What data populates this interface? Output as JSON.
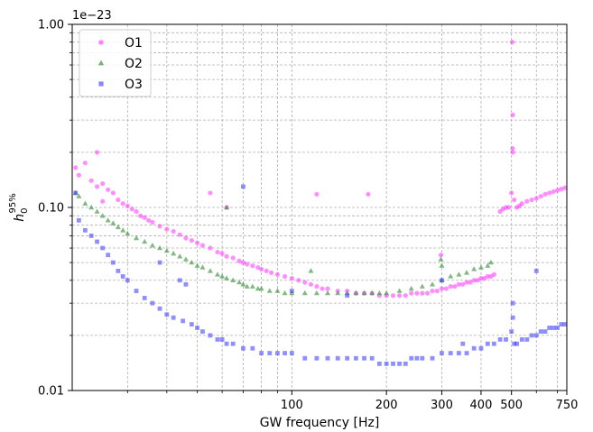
{
  "chart_data": {
    "type": "scatter",
    "title": "",
    "xlabel": "GW frequency [Hz]",
    "ylabel": "h₀⁹⁵%",
    "ylabel_main": "h",
    "ylabel_sub": "0",
    "ylabel_sup": "95%",
    "offset_text": "1e−23",
    "x_scale": "log",
    "y_scale": "log",
    "xlim": [
      20,
      750
    ],
    "ylim": [
      0.01,
      1.0
    ],
    "grid": true,
    "legend_position": "top-left",
    "x_ticks": [
      {
        "value": 100,
        "label": "100"
      },
      {
        "value": 200,
        "label": "200"
      },
      {
        "value": 300,
        "label": "300"
      },
      {
        "value": 400,
        "label": "400"
      },
      {
        "value": 500,
        "label": "500"
      },
      {
        "value": 750,
        "label": "750"
      }
    ],
    "y_ticks": [
      {
        "value": 0.01,
        "label": "0.01"
      },
      {
        "value": 0.1,
        "label": "0.10"
      },
      {
        "value": 1.0,
        "label": "1.00"
      }
    ],
    "series": [
      {
        "name": "O1",
        "color": "#ff33ff",
        "marker": "circle",
        "points": [
          [
            20.5,
            0.165
          ],
          [
            21,
            0.15
          ],
          [
            22,
            0.175
          ],
          [
            23,
            0.14
          ],
          [
            24,
            0.13
          ],
          [
            25,
            0.135
          ],
          [
            26,
            0.125
          ],
          [
            27,
            0.12
          ],
          [
            28,
            0.11
          ],
          [
            29,
            0.105
          ],
          [
            30,
            0.102
          ],
          [
            31,
            0.098
          ],
          [
            32,
            0.095
          ],
          [
            33,
            0.09
          ],
          [
            34,
            0.088
          ],
          [
            35,
            0.085
          ],
          [
            36,
            0.083
          ],
          [
            38,
            0.079
          ],
          [
            40,
            0.076
          ],
          [
            42,
            0.074
          ],
          [
            44,
            0.071
          ],
          [
            46,
            0.068
          ],
          [
            48,
            0.066
          ],
          [
            50,
            0.064
          ],
          [
            52,
            0.062
          ],
          [
            55,
            0.06
          ],
          [
            58,
            0.057
          ],
          [
            60,
            0.056
          ],
          [
            62,
            0.054
          ],
          [
            65,
            0.053
          ],
          [
            68,
            0.051
          ],
          [
            70,
            0.05
          ],
          [
            72,
            0.049
          ],
          [
            75,
            0.048
          ],
          [
            78,
            0.047
          ],
          [
            80,
            0.046
          ],
          [
            83,
            0.045
          ],
          [
            86,
            0.044
          ],
          [
            90,
            0.043
          ],
          [
            95,
            0.042
          ],
          [
            100,
            0.041
          ],
          [
            105,
            0.04
          ],
          [
            110,
            0.039
          ],
          [
            115,
            0.038
          ],
          [
            120,
            0.037
          ],
          [
            125,
            0.036
          ],
          [
            130,
            0.036
          ],
          [
            140,
            0.035
          ],
          [
            150,
            0.035
          ],
          [
            160,
            0.034
          ],
          [
            170,
            0.034
          ],
          [
            180,
            0.034
          ],
          [
            190,
            0.033
          ],
          [
            200,
            0.033
          ],
          [
            210,
            0.033
          ],
          [
            220,
            0.033
          ],
          [
            230,
            0.033
          ],
          [
            240,
            0.034
          ],
          [
            250,
            0.034
          ],
          [
            260,
            0.034
          ],
          [
            270,
            0.034
          ],
          [
            280,
            0.035
          ],
          [
            290,
            0.035
          ],
          [
            300,
            0.036
          ],
          [
            310,
            0.036
          ],
          [
            320,
            0.037
          ],
          [
            330,
            0.037
          ],
          [
            340,
            0.038
          ],
          [
            350,
            0.038
          ],
          [
            360,
            0.039
          ],
          [
            370,
            0.039
          ],
          [
            380,
            0.04
          ],
          [
            390,
            0.04
          ],
          [
            400,
            0.041
          ],
          [
            410,
            0.041
          ],
          [
            420,
            0.042
          ],
          [
            430,
            0.042
          ],
          [
            440,
            0.043
          ],
          [
            460,
            0.095
          ],
          [
            470,
            0.098
          ],
          [
            480,
            0.1
          ],
          [
            490,
            0.1
          ],
          [
            500,
            0.12
          ],
          [
            505,
            0.2
          ],
          [
            510,
            0.11
          ],
          [
            520,
            0.1
          ],
          [
            530,
            0.102
          ],
          [
            540,
            0.105
          ],
          [
            560,
            0.108
          ],
          [
            580,
            0.11
          ],
          [
            600,
            0.112
          ],
          [
            620,
            0.115
          ],
          [
            640,
            0.118
          ],
          [
            660,
            0.12
          ],
          [
            680,
            0.122
          ],
          [
            700,
            0.124
          ],
          [
            720,
            0.126
          ],
          [
            740,
            0.128
          ],
          [
            24,
            0.2
          ],
          [
            55,
            0.12
          ],
          [
            62,
            0.1
          ],
          [
            120,
            0.118
          ],
          [
            175,
            0.118
          ],
          [
            25,
            0.108
          ],
          [
            298,
            0.055
          ],
          [
            503,
            0.8
          ],
          [
            505,
            0.32
          ],
          [
            504,
            0.21
          ]
        ]
      },
      {
        "name": "O2",
        "color": "#2e8b2e",
        "marker": "triangle",
        "points": [
          [
            20.5,
            0.12
          ],
          [
            21,
            0.115
          ],
          [
            22,
            0.105
          ],
          [
            23,
            0.1
          ],
          [
            24,
            0.095
          ],
          [
            25,
            0.09
          ],
          [
            26,
            0.085
          ],
          [
            27,
            0.082
          ],
          [
            28,
            0.078
          ],
          [
            29,
            0.075
          ],
          [
            30,
            0.072
          ],
          [
            32,
            0.068
          ],
          [
            34,
            0.065
          ],
          [
            36,
            0.062
          ],
          [
            38,
            0.06
          ],
          [
            40,
            0.058
          ],
          [
            42,
            0.056
          ],
          [
            44,
            0.054
          ],
          [
            46,
            0.052
          ],
          [
            48,
            0.05
          ],
          [
            50,
            0.048
          ],
          [
            52,
            0.047
          ],
          [
            55,
            0.045
          ],
          [
            58,
            0.043
          ],
          [
            60,
            0.042
          ],
          [
            62,
            0.041
          ],
          [
            65,
            0.04
          ],
          [
            68,
            0.039
          ],
          [
            70,
            0.038
          ],
          [
            72,
            0.037
          ],
          [
            75,
            0.037
          ],
          [
            78,
            0.036
          ],
          [
            80,
            0.036
          ],
          [
            85,
            0.035
          ],
          [
            90,
            0.035
          ],
          [
            95,
            0.034
          ],
          [
            100,
            0.034
          ],
          [
            110,
            0.034
          ],
          [
            120,
            0.034
          ],
          [
            130,
            0.034
          ],
          [
            140,
            0.034
          ],
          [
            150,
            0.034
          ],
          [
            160,
            0.034
          ],
          [
            170,
            0.034
          ],
          [
            180,
            0.034
          ],
          [
            190,
            0.034
          ],
          [
            200,
            0.034
          ],
          [
            220,
            0.035
          ],
          [
            240,
            0.036
          ],
          [
            260,
            0.037
          ],
          [
            280,
            0.038
          ],
          [
            300,
            0.04
          ],
          [
            320,
            0.042
          ],
          [
            340,
            0.043
          ],
          [
            360,
            0.044
          ],
          [
            380,
            0.046
          ],
          [
            400,
            0.047
          ],
          [
            420,
            0.048
          ],
          [
            430,
            0.05
          ],
          [
            62,
            0.1
          ],
          [
            115,
            0.045
          ],
          [
            298,
            0.052
          ],
          [
            300,
            0.048
          ]
        ]
      },
      {
        "name": "O3",
        "color": "#3333ff",
        "marker": "square",
        "points": [
          [
            20.5,
            0.12
          ],
          [
            21,
            0.085
          ],
          [
            22,
            0.075
          ],
          [
            23,
            0.07
          ],
          [
            24,
            0.065
          ],
          [
            25,
            0.06
          ],
          [
            26,
            0.055
          ],
          [
            27,
            0.05
          ],
          [
            28,
            0.045
          ],
          [
            29,
            0.042
          ],
          [
            30,
            0.04
          ],
          [
            32,
            0.035
          ],
          [
            34,
            0.032
          ],
          [
            36,
            0.03
          ],
          [
            38,
            0.028
          ],
          [
            40,
            0.026
          ],
          [
            42,
            0.025
          ],
          [
            45,
            0.024
          ],
          [
            48,
            0.023
          ],
          [
            50,
            0.022
          ],
          [
            52,
            0.021
          ],
          [
            55,
            0.02
          ],
          [
            58,
            0.019
          ],
          [
            60,
            0.019
          ],
          [
            62,
            0.018
          ],
          [
            65,
            0.018
          ],
          [
            70,
            0.017
          ],
          [
            75,
            0.017
          ],
          [
            80,
            0.016
          ],
          [
            85,
            0.016
          ],
          [
            90,
            0.016
          ],
          [
            95,
            0.016
          ],
          [
            100,
            0.016
          ],
          [
            110,
            0.015
          ],
          [
            120,
            0.015
          ],
          [
            130,
            0.015
          ],
          [
            140,
            0.015
          ],
          [
            150,
            0.015
          ],
          [
            160,
            0.015
          ],
          [
            170,
            0.015
          ],
          [
            180,
            0.015
          ],
          [
            190,
            0.014
          ],
          [
            200,
            0.014
          ],
          [
            210,
            0.014
          ],
          [
            220,
            0.014
          ],
          [
            230,
            0.014
          ],
          [
            240,
            0.015
          ],
          [
            250,
            0.015
          ],
          [
            260,
            0.015
          ],
          [
            280,
            0.015
          ],
          [
            300,
            0.016
          ],
          [
            320,
            0.016
          ],
          [
            340,
            0.016
          ],
          [
            360,
            0.016
          ],
          [
            380,
            0.017
          ],
          [
            400,
            0.017
          ],
          [
            420,
            0.018
          ],
          [
            440,
            0.018
          ],
          [
            460,
            0.019
          ],
          [
            480,
            0.019
          ],
          [
            500,
            0.021
          ],
          [
            505,
            0.025
          ],
          [
            510,
            0.018
          ],
          [
            520,
            0.018
          ],
          [
            540,
            0.019
          ],
          [
            560,
            0.019
          ],
          [
            580,
            0.02
          ],
          [
            600,
            0.02
          ],
          [
            620,
            0.021
          ],
          [
            640,
            0.021
          ],
          [
            660,
            0.022
          ],
          [
            680,
            0.022
          ],
          [
            700,
            0.022
          ],
          [
            720,
            0.023
          ],
          [
            740,
            0.023
          ],
          [
            70,
            0.13
          ],
          [
            100,
            0.035
          ],
          [
            150,
            0.033
          ],
          [
            300,
            0.04
          ],
          [
            600,
            0.045
          ],
          [
            350,
            0.018
          ],
          [
            38,
            0.05
          ],
          [
            44,
            0.04
          ],
          [
            46,
            0.038
          ],
          [
            505,
            0.03
          ]
        ]
      }
    ]
  }
}
